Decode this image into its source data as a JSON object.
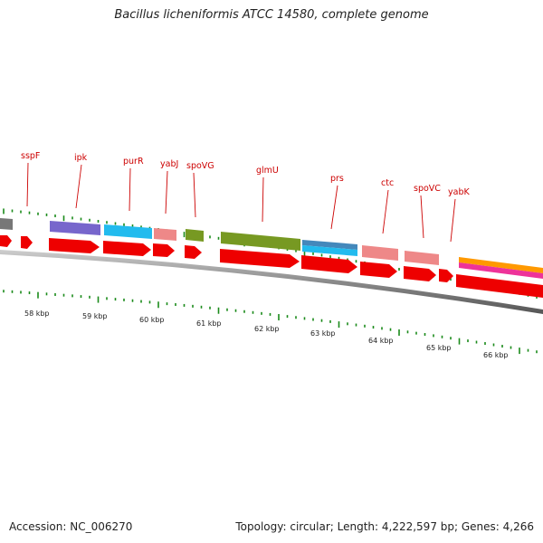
{
  "header": {
    "title": "Bacillus licheniformis ATCC 14580, complete genome"
  },
  "footer": {
    "accession": "Accession: NC_006270",
    "stats": "Topology: circular; Length: 4,222,597 bp; Genes: 4,266"
  },
  "scale_labels": [
    "58 kbp",
    "59 kbp",
    "60 kbp",
    "61 kbp",
    "62 kbp",
    "63 kbp",
    "64 kbp",
    "65 kbp",
    "66 kbp"
  ],
  "gene_labels": [
    "sspF",
    "ipk",
    "purR",
    "yabJ",
    "spoVG",
    "glmU",
    "prs",
    "ctc",
    "spoVC",
    "yabK"
  ],
  "colors": {
    "arrow_red": "#ee0000",
    "backbone": "#8a8a8a",
    "tick_green": "#1a8a1a",
    "label_red": "#cc0000",
    "cog_purple": "#7766cc",
    "cog_cyan": "#22bbee",
    "cog_pink": "#ee8888",
    "cog_olive": "#779922",
    "cog_steelblue": "#4488bb",
    "cog_orange": "#ff9900",
    "cog_magenta": "#ee3399",
    "cog_gray": "#777777"
  }
}
